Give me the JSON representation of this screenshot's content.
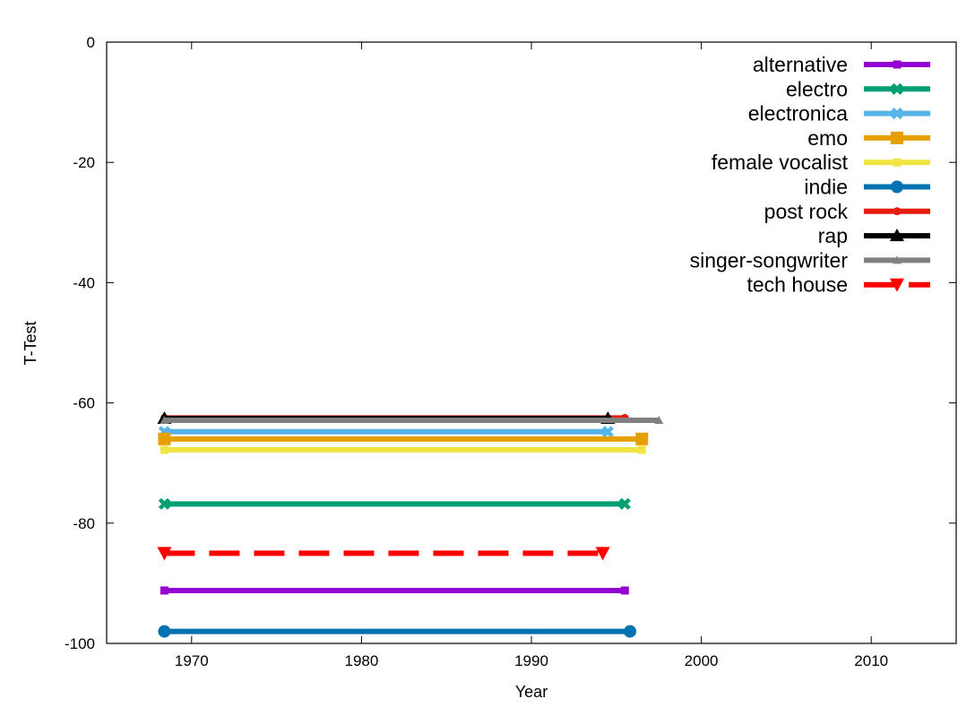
{
  "chart_data": {
    "type": "line",
    "title": "",
    "xlabel": "Year",
    "ylabel": "T-Test",
    "xlim": [
      1965,
      2015
    ],
    "ylim": [
      -100,
      0
    ],
    "xticks": [
      1970,
      1980,
      1990,
      2000,
      2010
    ],
    "yticks": [
      0,
      -20,
      -40,
      -60,
      -80,
      -100
    ],
    "grid": false,
    "legend_position": "top-right",
    "series": [
      {
        "name": "alternative",
        "color": "#9400d3",
        "marker": "square-small",
        "dash": false,
        "x": [
          1968.4,
          1995.5
        ],
        "y": [
          -91.2,
          -91.2
        ]
      },
      {
        "name": "electro",
        "color": "#009e73",
        "marker": "x",
        "dash": false,
        "x": [
          1968.4,
          1995.5
        ],
        "y": [
          -76.8,
          -76.8
        ]
      },
      {
        "name": "electronica",
        "color": "#56b4e9",
        "marker": "x",
        "dash": false,
        "x": [
          1968.4,
          1994.5
        ],
        "y": [
          -64.8,
          -64.8
        ]
      },
      {
        "name": "emo",
        "color": "#e69f00",
        "marker": "square",
        "dash": false,
        "x": [
          1968.4,
          1996.5
        ],
        "y": [
          -66.0,
          -66.0
        ]
      },
      {
        "name": "female vocalist",
        "color": "#f0e442",
        "marker": "square-small",
        "dash": false,
        "x": [
          1968.4,
          1996.5
        ],
        "y": [
          -67.8,
          -67.8
        ]
      },
      {
        "name": "indie",
        "color": "#0072b2",
        "marker": "circle",
        "dash": false,
        "x": [
          1968.4,
          1995.8
        ],
        "y": [
          -98.0,
          -98.0
        ]
      },
      {
        "name": "post rock",
        "color": "#e51e10",
        "marker": "circle-small",
        "dash": false,
        "x": [
          1968.4,
          1995.5
        ],
        "y": [
          -62.5,
          -62.5
        ]
      },
      {
        "name": "rap",
        "color": "#000000",
        "marker": "triangle-up",
        "dash": false,
        "x": [
          1968.4,
          1994.5
        ],
        "y": [
          -62.6,
          -62.6
        ]
      },
      {
        "name": "singer-songwriter",
        "color": "#808080",
        "marker": "triangle-up-small",
        "dash": false,
        "x": [
          1968.4,
          1997.5
        ],
        "y": [
          -62.9,
          -62.9
        ]
      },
      {
        "name": "tech house",
        "color": "#ff0000",
        "marker": "triangle-down",
        "dash": true,
        "x": [
          1968.4,
          1994.2
        ],
        "y": [
          -85.0,
          -85.0
        ]
      }
    ]
  }
}
